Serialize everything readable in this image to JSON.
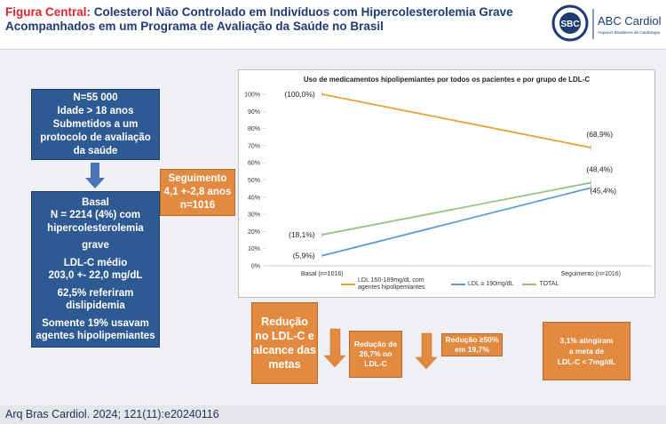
{
  "header": {
    "label": "Figura Central:",
    "title": "Colesterol Não Controlado em Indivíduos com Hipercolesterolemia Grave Acompanhados em um Programa de Avaliação da Saúde no Brasil",
    "logo": "SBC",
    "journal": "ABC Cardiol",
    "journal_subtitle": "Arquivos Brasileiros de Cardiologia"
  },
  "boxes": [
    {
      "lines": [
        "N=55 000",
        "Idade > 18 anos",
        "Submetidos a um",
        "protocolo de avaliação",
        "da saúde"
      ]
    },
    {
      "lines": [
        "Basal",
        "N = 2214 (4%) com",
        "hipercolesterolemia",
        "grave",
        "LDL-C médio",
        "203,0 +- 22,0 mg/dL",
        "62,5% referiram",
        "dislipidemia",
        "Somente 19% usavam",
        "agentes hipolipemiantes"
      ]
    },
    {
      "lines": [
        "Seguimento",
        "4,1 +-2,8 anos",
        "n=1016"
      ]
    },
    {
      "lines": [
        "Redução",
        "no LDL-C e",
        "alcance das",
        "metas"
      ]
    },
    {
      "lines": [
        "Redução de",
        "26,7% no",
        "LDL-C"
      ]
    },
    {
      "lines": [
        "Redução ≥50%",
        "em 19,7%"
      ]
    },
    {
      "lines": [
        "3,1% atingiram",
        "a meta de",
        "LDL-C < 7mg/dL"
      ]
    }
  ],
  "chart_data": {
    "type": "line",
    "title": "Uso de medicamentos hipolipemiantes por todos os pacientes e por grupo de LDL-C",
    "categories": [
      "Basal (n=1016)",
      "Seguimento (n=1016)"
    ],
    "series": [
      {
        "name": "LDL 160-189mg/dL com agentes hipolipemiantes",
        "color": "#e8a33a",
        "values": [
          100,
          68.9
        ],
        "value_labels": [
          "(100,0%)",
          "(68,9%)"
        ]
      },
      {
        "name": "LDL ≥ 190mg/dL",
        "color": "#5b9bd5",
        "values": [
          5.9,
          45.4
        ],
        "value_labels": [
          "(5,9%)",
          "(45,4%)"
        ]
      },
      {
        "name": "TOTAL",
        "color": "#93c47d",
        "values": [
          18.1,
          48.4
        ],
        "value_labels": [
          "(18,1%)",
          "(48,4%)"
        ]
      }
    ],
    "ylim": [
      0,
      100
    ],
    "yticks": [
      {
        "value": 0,
        "label": "0%"
      },
      {
        "value": 10,
        "label": "10%"
      },
      {
        "value": 20,
        "label": "20%"
      },
      {
        "value": 30,
        "label": "30%"
      },
      {
        "value": 40,
        "label": "40%"
      },
      {
        "value": 50,
        "label": "50%"
      },
      {
        "value": 60,
        "label": "60%"
      },
      {
        "value": 70,
        "label": "70%"
      },
      {
        "value": 80,
        "label": "80%"
      },
      {
        "value": 90,
        "label": "90%"
      },
      {
        "value": 100,
        "label": "100%"
      }
    ]
  },
  "footer": "Arq Bras Cardiol. 2024; 121(11):e20240116"
}
